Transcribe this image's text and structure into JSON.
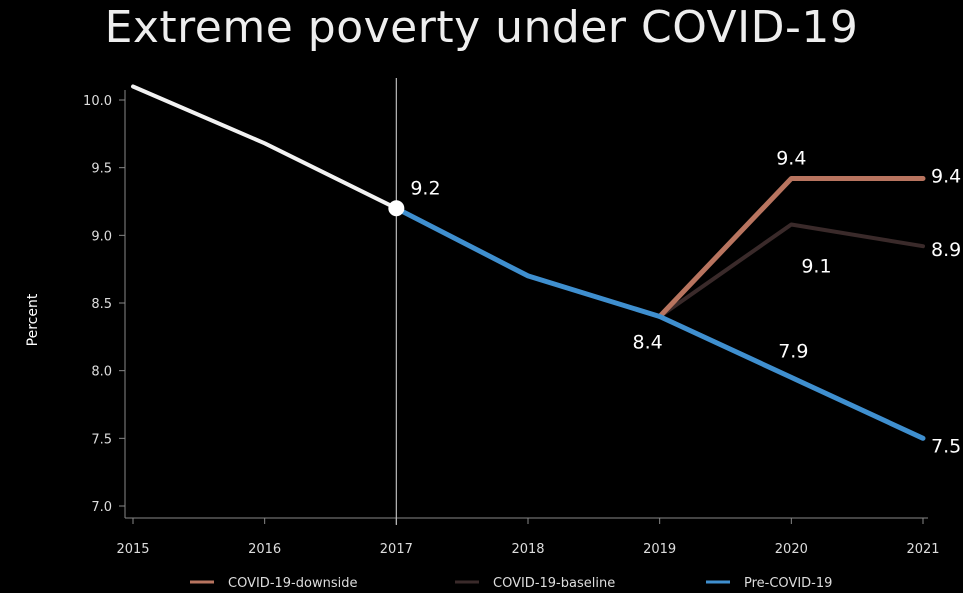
{
  "chart_data": {
    "type": "line",
    "title": "Extreme poverty under COVID-19",
    "xlabel": "",
    "ylabel": "Percent",
    "ylim": [
      7.0,
      10.2
    ],
    "xlim": [
      2015,
      2021
    ],
    "yticks": [
      "7.0",
      "7.5",
      "8.0",
      "8.5",
      "9.0",
      "9.5",
      "10.0"
    ],
    "xticks": [
      "2015",
      "2016",
      "2017",
      "2018",
      "2019",
      "2020",
      "2021"
    ],
    "vline": 2017,
    "legend_position": "bottom",
    "series": [
      {
        "name": "",
        "color": "#f2f2f2",
        "x": [
          2015,
          2016,
          2017
        ],
        "y": [
          10.1,
          9.68,
          9.2
        ]
      },
      {
        "name": "Pre-COVID-19",
        "color": "#3f8fcf",
        "x": [
          2017,
          2018,
          2019,
          2020,
          2021
        ],
        "y": [
          9.2,
          8.7,
          8.4,
          7.95,
          7.5
        ]
      },
      {
        "name": "COVID-19-baseline",
        "color": "#3a2a2a",
        "x": [
          2019,
          2020,
          2021
        ],
        "y": [
          8.4,
          9.08,
          8.92
        ]
      },
      {
        "name": "COVID-19-downside",
        "color": "#b8745f",
        "x": [
          2019,
          2020,
          2021
        ],
        "y": [
          8.4,
          9.42,
          9.42
        ]
      }
    ],
    "point_marker": {
      "x": 2017,
      "y": 9.2
    },
    "annotations": [
      {
        "text": "9.2",
        "x": 2017,
        "y": 9.2
      },
      {
        "text": "9.4",
        "x": 2020,
        "y": 9.42
      },
      {
        "text": "9.4",
        "x": 2021,
        "y": 9.42
      },
      {
        "text": "9.1",
        "x": 2020,
        "y": 9.08
      },
      {
        "text": "8.9",
        "x": 2021,
        "y": 8.92
      },
      {
        "text": "8.4",
        "x": 2019,
        "y": 8.4
      },
      {
        "text": "7.9",
        "x": 2020,
        "y": 7.95
      },
      {
        "text": "7.5",
        "x": 2021,
        "y": 7.5
      }
    ],
    "legend": [
      {
        "label": "COVID-19-downside",
        "color": "#b8745f"
      },
      {
        "label": "COVID-19-baseline",
        "color": "#3a2a2a"
      },
      {
        "label": "Pre-COVID-19",
        "color": "#3f8fcf"
      }
    ]
  }
}
